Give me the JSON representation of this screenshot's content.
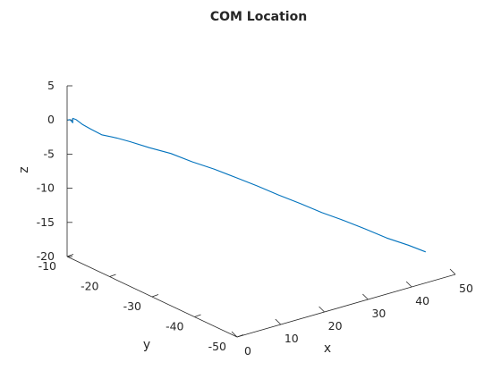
{
  "chart_data": {
    "type": "line",
    "projection": "3d",
    "title": "COM Location",
    "xlabel": "x",
    "ylabel": "y",
    "zlabel": "z",
    "xlim": [
      0,
      50
    ],
    "ylim": [
      -50,
      -10
    ],
    "zlim": [
      -20,
      5
    ],
    "xticks": [
      "0",
      "10",
      "20",
      "30",
      "40",
      "50"
    ],
    "yticks": [
      "-10",
      "-20",
      "-30",
      "-40",
      "-50"
    ],
    "zticks": [
      "5",
      "0",
      "-5",
      "-10",
      "-15",
      "-20"
    ],
    "grid": false,
    "series": [
      {
        "color": "#0072BD",
        "x": [
          0,
          0.5,
          1.0,
          1.3,
          1.8,
          2.5,
          3.5,
          5,
          7,
          9,
          12,
          15,
          18,
          21,
          24,
          27,
          30,
          33,
          36,
          39,
          42,
          45,
          48,
          50.5
        ],
        "y": [
          -10.1,
          -10.15,
          -10.3,
          -10.0,
          -10.3,
          -11,
          -12,
          -13,
          -14.5,
          -15.5,
          -17,
          -19,
          -21,
          -23,
          -25,
          -27,
          -29,
          -31,
          -33,
          -35,
          -37,
          -39,
          -41,
          -42.5
        ],
        "z": [
          0,
          0,
          -0.5,
          0,
          -0.2,
          -0.8,
          -1.4,
          -2.2,
          -2.6,
          -3.2,
          -4.2,
          -5.0,
          -6.2,
          -7.2,
          -8.4,
          -9.6,
          -10.9,
          -12.1,
          -13.4,
          -14.5,
          -15.7,
          -17.0,
          -18.0,
          -19.0
        ]
      }
    ]
  }
}
